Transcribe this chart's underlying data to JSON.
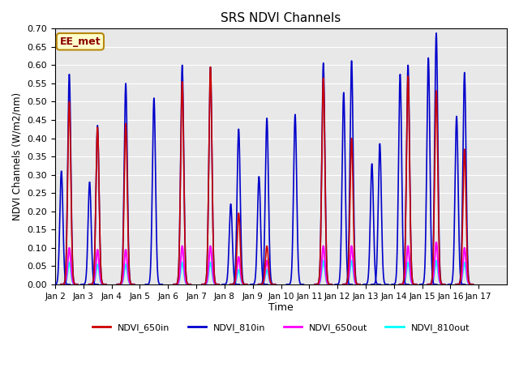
{
  "title": "SRS NDVI Channels",
  "ylabel": "NDVI Channels (W/m2/nm)",
  "xlabel": "Time",
  "annotation": "EE_met",
  "ylim": [
    0.0,
    0.7
  ],
  "yticks": [
    0.0,
    0.05,
    0.1,
    0.15,
    0.2,
    0.25,
    0.3,
    0.35,
    0.4,
    0.45,
    0.5,
    0.55,
    0.6,
    0.65,
    0.7
  ],
  "bg_color": "#e8e8e8",
  "colors": {
    "NDVI_650in": "#cc0000",
    "NDVI_810in": "#0000cc",
    "NDVI_650out": "#ff00ff",
    "NDVI_810out": "#00ffff"
  },
  "xtick_labels": [
    "Jan 2",
    "Jan 3",
    "Jan 4",
    "Jan 5",
    "Jan 6",
    "Jan 7",
    "Jan 8",
    "Jan 9",
    "Jan 10",
    "Jan 11",
    "Jan 12",
    "Jan 13",
    "Jan 14",
    "Jan 15",
    "Jan 16",
    "Jan 17"
  ],
  "xtick_positions": [
    0,
    1,
    2,
    3,
    4,
    5,
    6,
    7,
    8,
    9,
    10,
    11,
    12,
    13,
    14,
    15
  ],
  "peaks_810in": [
    0.575,
    0.435,
    0.55,
    0.51,
    0.6,
    0.595,
    0.425,
    0.455,
    0.465,
    0.606,
    0.612,
    0.385,
    0.6,
    0.688,
    0.58,
    0.0
  ],
  "peaks_650in": [
    0.5,
    0.43,
    0.44,
    0.0,
    0.555,
    0.595,
    0.195,
    0.105,
    0.0,
    0.565,
    0.4,
    0.0,
    0.57,
    0.53,
    0.37,
    0.0
  ],
  "peaks_650out": [
    0.1,
    0.095,
    0.095,
    0.0,
    0.105,
    0.105,
    0.075,
    0.065,
    0.0,
    0.105,
    0.105,
    0.0,
    0.105,
    0.115,
    0.1,
    0.0
  ],
  "peaks_810out": [
    0.06,
    0.055,
    0.055,
    0.0,
    0.06,
    0.06,
    0.04,
    0.04,
    0.0,
    0.065,
    0.065,
    0.0,
    0.06,
    0.065,
    0.06,
    0.0
  ],
  "sec_810in": [
    0.31,
    0.28,
    0.0,
    0.0,
    0.0,
    0.0,
    0.22,
    0.295,
    0.0,
    0.0,
    0.525,
    0.33,
    0.575,
    0.62,
    0.46,
    0.0
  ],
  "sec_650in": [
    0.0,
    0.0,
    0.0,
    0.0,
    0.0,
    0.0,
    0.0,
    0.0,
    0.0,
    0.0,
    0.0,
    0.0,
    0.0,
    0.0,
    0.0,
    0.0
  ],
  "sec_650out": [
    0.0,
    0.0,
    0.0,
    0.0,
    0.0,
    0.0,
    0.0,
    0.0,
    0.0,
    0.0,
    0.0,
    0.0,
    0.0,
    0.0,
    0.0,
    0.0
  ],
  "sec_810out": [
    0.0,
    0.0,
    0.0,
    0.0,
    0.0,
    0.0,
    0.0,
    0.0,
    0.0,
    0.0,
    0.0,
    0.0,
    0.0,
    0.0,
    0.0,
    0.0
  ],
  "sec_650out_v2": [
    0.0,
    0.0,
    0.0,
    0.0,
    0.0,
    0.0,
    0.04,
    0.04,
    0.0,
    0.0,
    0.065,
    0.0,
    0.0,
    0.065,
    0.0,
    0.0
  ],
  "sec_810out_v2": [
    0.0,
    0.0,
    0.0,
    0.0,
    0.0,
    0.0,
    0.025,
    0.025,
    0.0,
    0.0,
    0.04,
    0.0,
    0.0,
    0.04,
    0.0,
    0.0
  ]
}
